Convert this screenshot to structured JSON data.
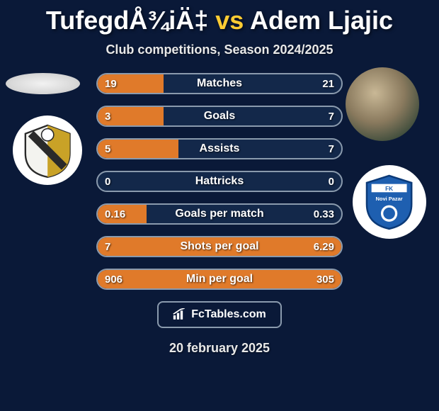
{
  "background_color": "#0a1938",
  "title": {
    "left_name": "TufegdÅ¾iÄ‡",
    "vs": "vs",
    "right_name": "Adem Ljajic",
    "highlight_color": "#ffcc33",
    "text_color": "#ffffff",
    "fontsize": 36
  },
  "subtitle": {
    "text": "Club competitions, Season 2024/2025",
    "color": "#e8e8e8",
    "fontsize": 18
  },
  "bars": {
    "bar_bg": "#13284a",
    "bar_border": "#8a9aad",
    "fill_color": "#e07a2a",
    "text_color": "#ffffff",
    "label_fontsize": 16,
    "value_fontsize": 15,
    "rows": [
      {
        "label": "Matches",
        "left_val": "19",
        "right_val": "21",
        "left_pct": 27,
        "right_pct": 0
      },
      {
        "label": "Goals",
        "left_val": "3",
        "right_val": "7",
        "left_pct": 27,
        "right_pct": 0
      },
      {
        "label": "Assists",
        "left_val": "5",
        "right_val": "7",
        "left_pct": 33,
        "right_pct": 0
      },
      {
        "label": "Hattricks",
        "left_val": "0",
        "right_val": "0",
        "left_pct": 0,
        "right_pct": 0
      },
      {
        "label": "Goals per match",
        "left_val": "0.16",
        "right_val": "0.33",
        "left_pct": 20,
        "right_pct": 0
      },
      {
        "label": "Shots per goal",
        "left_val": "7",
        "right_val": "6.29",
        "left_pct": 100,
        "right_pct": 0
      },
      {
        "label": "Min per goal",
        "left_val": "906",
        "right_val": "305",
        "left_pct": 100,
        "right_pct": 0
      }
    ]
  },
  "branding": {
    "text": "FcTables.com",
    "border_color": "#8a9aad",
    "text_color": "#ffffff"
  },
  "date": {
    "text": "20 february 2025",
    "color": "#e8e8e8",
    "fontsize": 18
  },
  "crests": {
    "left": {
      "bg": "#ffffff",
      "stripe1": "#c9a227",
      "stripe2": "#2a2a2a"
    },
    "right": {
      "bg": "#ffffff",
      "shield": "#1e5fb0",
      "accent": "#ffffff"
    }
  }
}
